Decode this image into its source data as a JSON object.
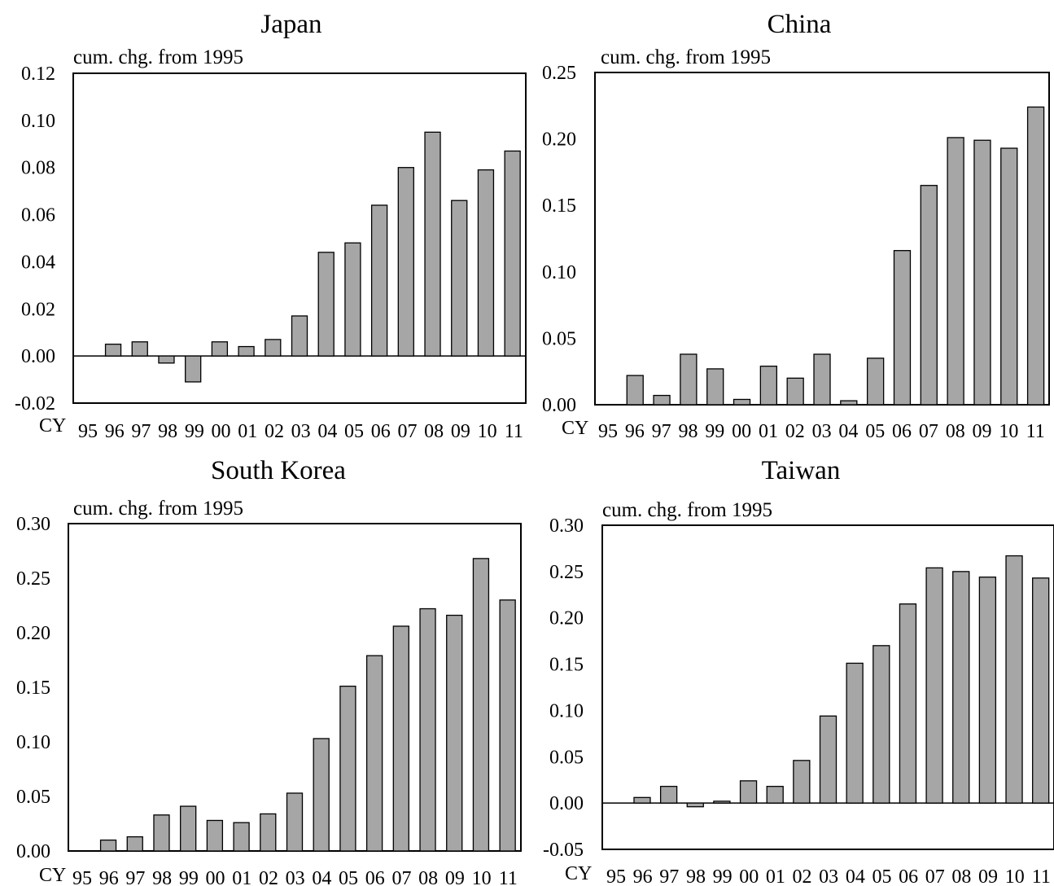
{
  "colors": {
    "bar_fill": "#a6a6a6",
    "bar_stroke": "#000000",
    "axis": "#000000",
    "background": "#ffffff"
  },
  "chart_data": [
    {
      "type": "bar",
      "title": "Japan",
      "ylabel": "cum. chg. from 1995",
      "xlabel": "CY",
      "categories": [
        "95",
        "96",
        "97",
        "98",
        "99",
        "00",
        "01",
        "02",
        "03",
        "04",
        "05",
        "06",
        "07",
        "08",
        "09",
        "10",
        "11"
      ],
      "values": [
        0.0,
        0.005,
        0.006,
        -0.003,
        -0.011,
        0.006,
        0.004,
        0.007,
        0.017,
        0.044,
        0.048,
        0.064,
        0.08,
        0.095,
        0.066,
        0.079,
        0.087
      ],
      "ylim": [
        -0.02,
        0.12
      ],
      "yticks": [
        "0.12",
        "0.10",
        "0.08",
        "0.06",
        "0.04",
        "0.02",
        "0.00",
        "-0.02"
      ],
      "ytick_values": [
        0.12,
        0.1,
        0.08,
        0.06,
        0.04,
        0.02,
        0.0,
        -0.02
      ],
      "zero_line": true,
      "grid": false
    },
    {
      "type": "bar",
      "title": "China",
      "ylabel": "cum. chg. from 1995",
      "xlabel": "CY",
      "categories": [
        "95",
        "96",
        "97",
        "98",
        "99",
        "00",
        "01",
        "02",
        "03",
        "04",
        "05",
        "06",
        "07",
        "08",
        "09",
        "10",
        "11"
      ],
      "values": [
        0.0,
        0.022,
        0.007,
        0.038,
        0.027,
        0.004,
        0.029,
        0.02,
        0.038,
        0.003,
        0.035,
        0.116,
        0.165,
        0.201,
        0.199,
        0.193,
        0.224
      ],
      "ylim": [
        0.0,
        0.25
      ],
      "yticks": [
        "0.25",
        "0.20",
        "0.15",
        "0.10",
        "0.05",
        "0.00"
      ],
      "ytick_values": [
        0.25,
        0.2,
        0.15,
        0.1,
        0.05,
        0.0
      ],
      "zero_line": false,
      "grid": false
    },
    {
      "type": "bar",
      "title": "South Korea",
      "ylabel": "cum. chg. from 1995",
      "xlabel": "CY",
      "categories": [
        "95",
        "96",
        "97",
        "98",
        "99",
        "00",
        "01",
        "02",
        "03",
        "04",
        "05",
        "06",
        "07",
        "08",
        "09",
        "10",
        "11"
      ],
      "values": [
        0.0,
        0.01,
        0.013,
        0.033,
        0.041,
        0.028,
        0.026,
        0.034,
        0.053,
        0.103,
        0.151,
        0.179,
        0.206,
        0.222,
        0.216,
        0.268,
        0.23
      ],
      "ylim": [
        0.0,
        0.3
      ],
      "yticks": [
        "0.30",
        "0.25",
        "0.20",
        "0.15",
        "0.10",
        "0.05",
        "0.00"
      ],
      "ytick_values": [
        0.3,
        0.25,
        0.2,
        0.15,
        0.1,
        0.05,
        0.0
      ],
      "zero_line": false,
      "grid": false
    },
    {
      "type": "bar",
      "title": "Taiwan",
      "ylabel": "cum. chg. from 1995",
      "xlabel": "CY",
      "categories": [
        "95",
        "96",
        "97",
        "98",
        "99",
        "00",
        "01",
        "02",
        "03",
        "04",
        "05",
        "06",
        "07",
        "08",
        "09",
        "10",
        "11"
      ],
      "values": [
        0.0,
        0.006,
        0.018,
        -0.004,
        0.002,
        0.024,
        0.018,
        0.046,
        0.094,
        0.151,
        0.17,
        0.215,
        0.254,
        0.25,
        0.244,
        0.267,
        0.243
      ],
      "ylim": [
        -0.05,
        0.3
      ],
      "yticks": [
        "0.30",
        "0.25",
        "0.20",
        "0.15",
        "0.10",
        "0.05",
        "0.00",
        "-0.05"
      ],
      "ytick_values": [
        0.3,
        0.25,
        0.2,
        0.15,
        0.1,
        0.05,
        0.0,
        -0.05
      ],
      "zero_line": true,
      "grid": false
    }
  ]
}
